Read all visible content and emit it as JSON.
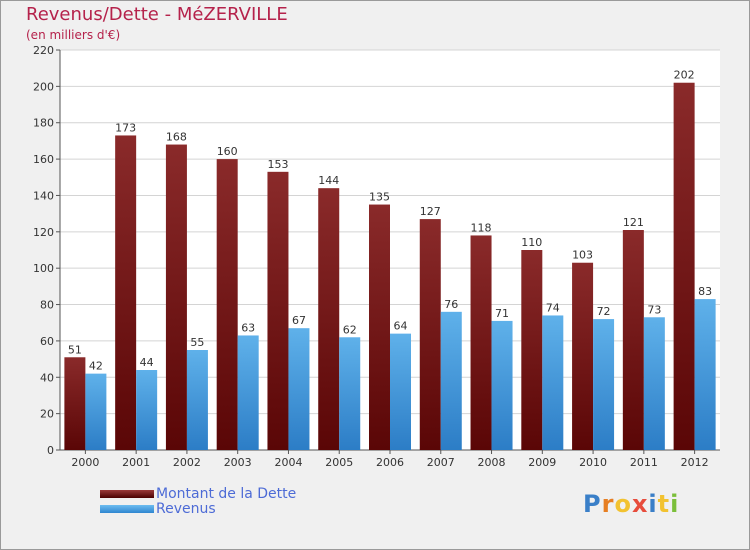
{
  "title": "Revenus/Dette - MéZERVILLE",
  "subtitle": "(en milliers d'€)",
  "colors": {
    "dette_top": "#8a2a2a",
    "dette_bottom": "#5a0606",
    "revenus_top": "#5fb1ea",
    "revenus_bottom": "#2c7dc6",
    "title": "#b5224b",
    "legend_text": "#4d6bd6"
  },
  "legend": [
    {
      "label": "Montant de la Dette",
      "color": "#6b0d0d"
    },
    {
      "label": "Revenus",
      "color": "#4aa3e8"
    }
  ],
  "logo": {
    "text": "Proxiti",
    "letter_colors": [
      "#3a7fc8",
      "#e67e22",
      "#f2c230",
      "#e74c3c",
      "#3a7fc8",
      "#f2c230",
      "#7bbf3a"
    ]
  },
  "chart_data": {
    "type": "bar",
    "categories": [
      "2000",
      "2001",
      "2002",
      "2003",
      "2004",
      "2005",
      "2006",
      "2007",
      "2008",
      "2009",
      "2010",
      "2011",
      "2012"
    ],
    "series": [
      {
        "name": "Montant de la Dette",
        "values": [
          51,
          173,
          168,
          160,
          153,
          144,
          135,
          127,
          118,
          110,
          103,
          121,
          202
        ]
      },
      {
        "name": "Revenus",
        "values": [
          42,
          44,
          55,
          63,
          67,
          62,
          64,
          76,
          71,
          74,
          72,
          73,
          83
        ]
      }
    ],
    "ylim": [
      0,
      220
    ],
    "yticks": [
      0,
      20,
      40,
      60,
      80,
      100,
      120,
      140,
      160,
      180,
      200,
      220
    ],
    "grid": true,
    "data_labels": true,
    "legend_position": "bottom-left"
  }
}
